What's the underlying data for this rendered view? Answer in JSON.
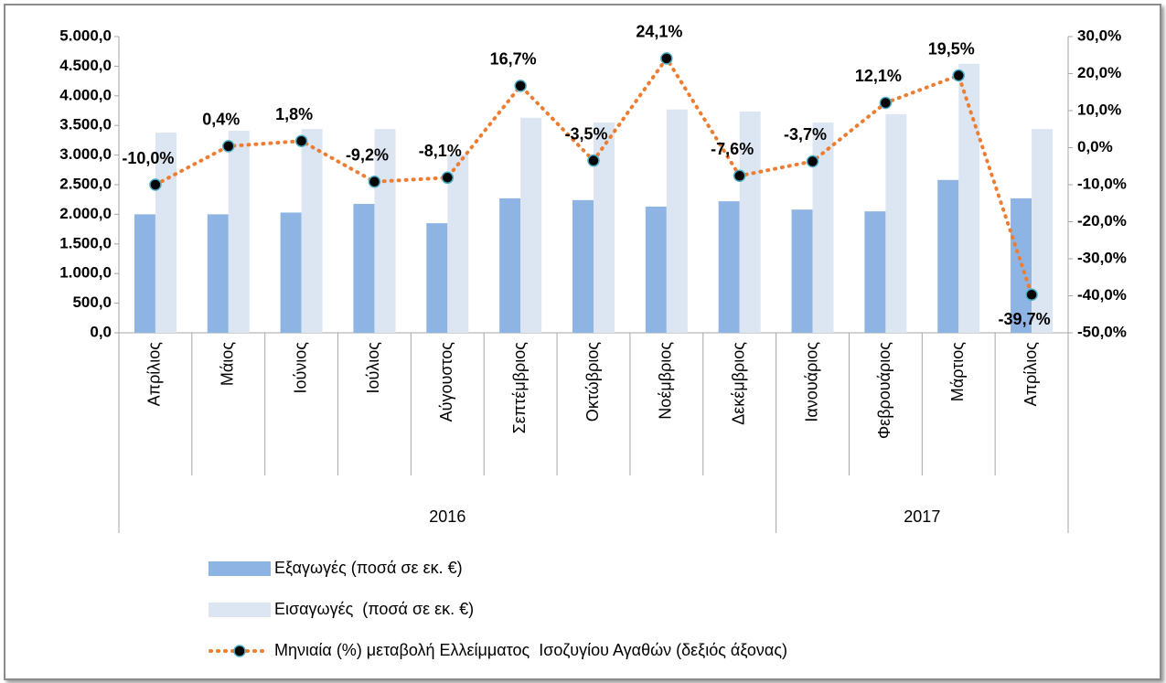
{
  "chart_data": {
    "type": "bar-line",
    "categories": [
      "Απρίλιος",
      "Μάιος",
      "Ιούνιος",
      "Ιούλιος",
      "Αύγουστος",
      "Σεπτέμβριος",
      "Οκτώβριος",
      "Νοέμβριος",
      "Δεκέμβριος",
      "Ιανουάριος",
      "Φεβρουάριος",
      "Μάρτιος",
      "Απρίλιος"
    ],
    "groups": [
      {
        "label": "2016",
        "count": 9
      },
      {
        "label": "2017",
        "count": 4
      }
    ],
    "series": [
      {
        "name": "Εξαγωγές (ποσά σε εκ. €)",
        "type": "bar",
        "color": "#8eb4e3",
        "values": [
          2000,
          2000,
          2030,
          2175,
          1850,
          2270,
          2240,
          2130,
          2220,
          2080,
          2050,
          2580,
          2270
        ]
      },
      {
        "name": "Εισαγωγές  (ποσά σε εκ. €)",
        "type": "bar",
        "color": "#dce6f2",
        "values": [
          3380,
          3410,
          3440,
          3440,
          3010,
          3630,
          3550,
          3770,
          3735,
          3550,
          3690,
          4540,
          3440
        ]
      },
      {
        "name": "Μηνιαία (%) μεταβολή Ελλείμματος  Ισοζυγίου Αγαθών (δεξιός άξονας)",
        "type": "line",
        "axis": "y2",
        "color": "#ed7d31",
        "marker_color": "#000000",
        "marker_edge": "#4bacc6",
        "values": [
          -10.0,
          0.4,
          1.8,
          -9.2,
          -8.1,
          16.7,
          -3.5,
          24.1,
          -7.6,
          -3.7,
          12.1,
          19.5,
          -39.7
        ],
        "value_labels": [
          "-10,0%",
          "0,4%",
          "1,8%",
          "-9,2%",
          "-8,1%",
          "16,7%",
          "-3,5%",
          "24,1%",
          "-7,6%",
          "-3,7%",
          "12,1%",
          "19,5%",
          "-39,7%"
        ],
        "positive_label_color": "#ff0000",
        "negative_label_color": "#000000"
      }
    ],
    "ylim": [
      0,
      5000
    ],
    "yticks": [
      {
        "value": 0,
        "label": "0,0"
      },
      {
        "value": 500,
        "label": "500,0"
      },
      {
        "value": 1000,
        "label": "1.000,0"
      },
      {
        "value": 1500,
        "label": "1.500,0"
      },
      {
        "value": 2000,
        "label": "2.000,0"
      },
      {
        "value": 2500,
        "label": "2.500,0"
      },
      {
        "value": 3000,
        "label": "3.000,0"
      },
      {
        "value": 3500,
        "label": "3.500,0"
      },
      {
        "value": 4000,
        "label": "4.000,0"
      },
      {
        "value": 4500,
        "label": "4.500,0"
      },
      {
        "value": 5000,
        "label": "5.000,0"
      }
    ],
    "y2lim": [
      -50,
      30
    ],
    "y2ticks": [
      {
        "value": -50,
        "label": "-50,0%"
      },
      {
        "value": -40,
        "label": "-40,0%"
      },
      {
        "value": -30,
        "label": "-30,0%"
      },
      {
        "value": -20,
        "label": "-20,0%"
      },
      {
        "value": -10,
        "label": "-10,0%"
      },
      {
        "value": 0,
        "label": "0,0%"
      },
      {
        "value": 10,
        "label": "10,0%"
      },
      {
        "value": 20,
        "label": "20,0%"
      },
      {
        "value": 30,
        "label": "30,0%"
      }
    ],
    "grid": false,
    "legend": "bottom"
  }
}
